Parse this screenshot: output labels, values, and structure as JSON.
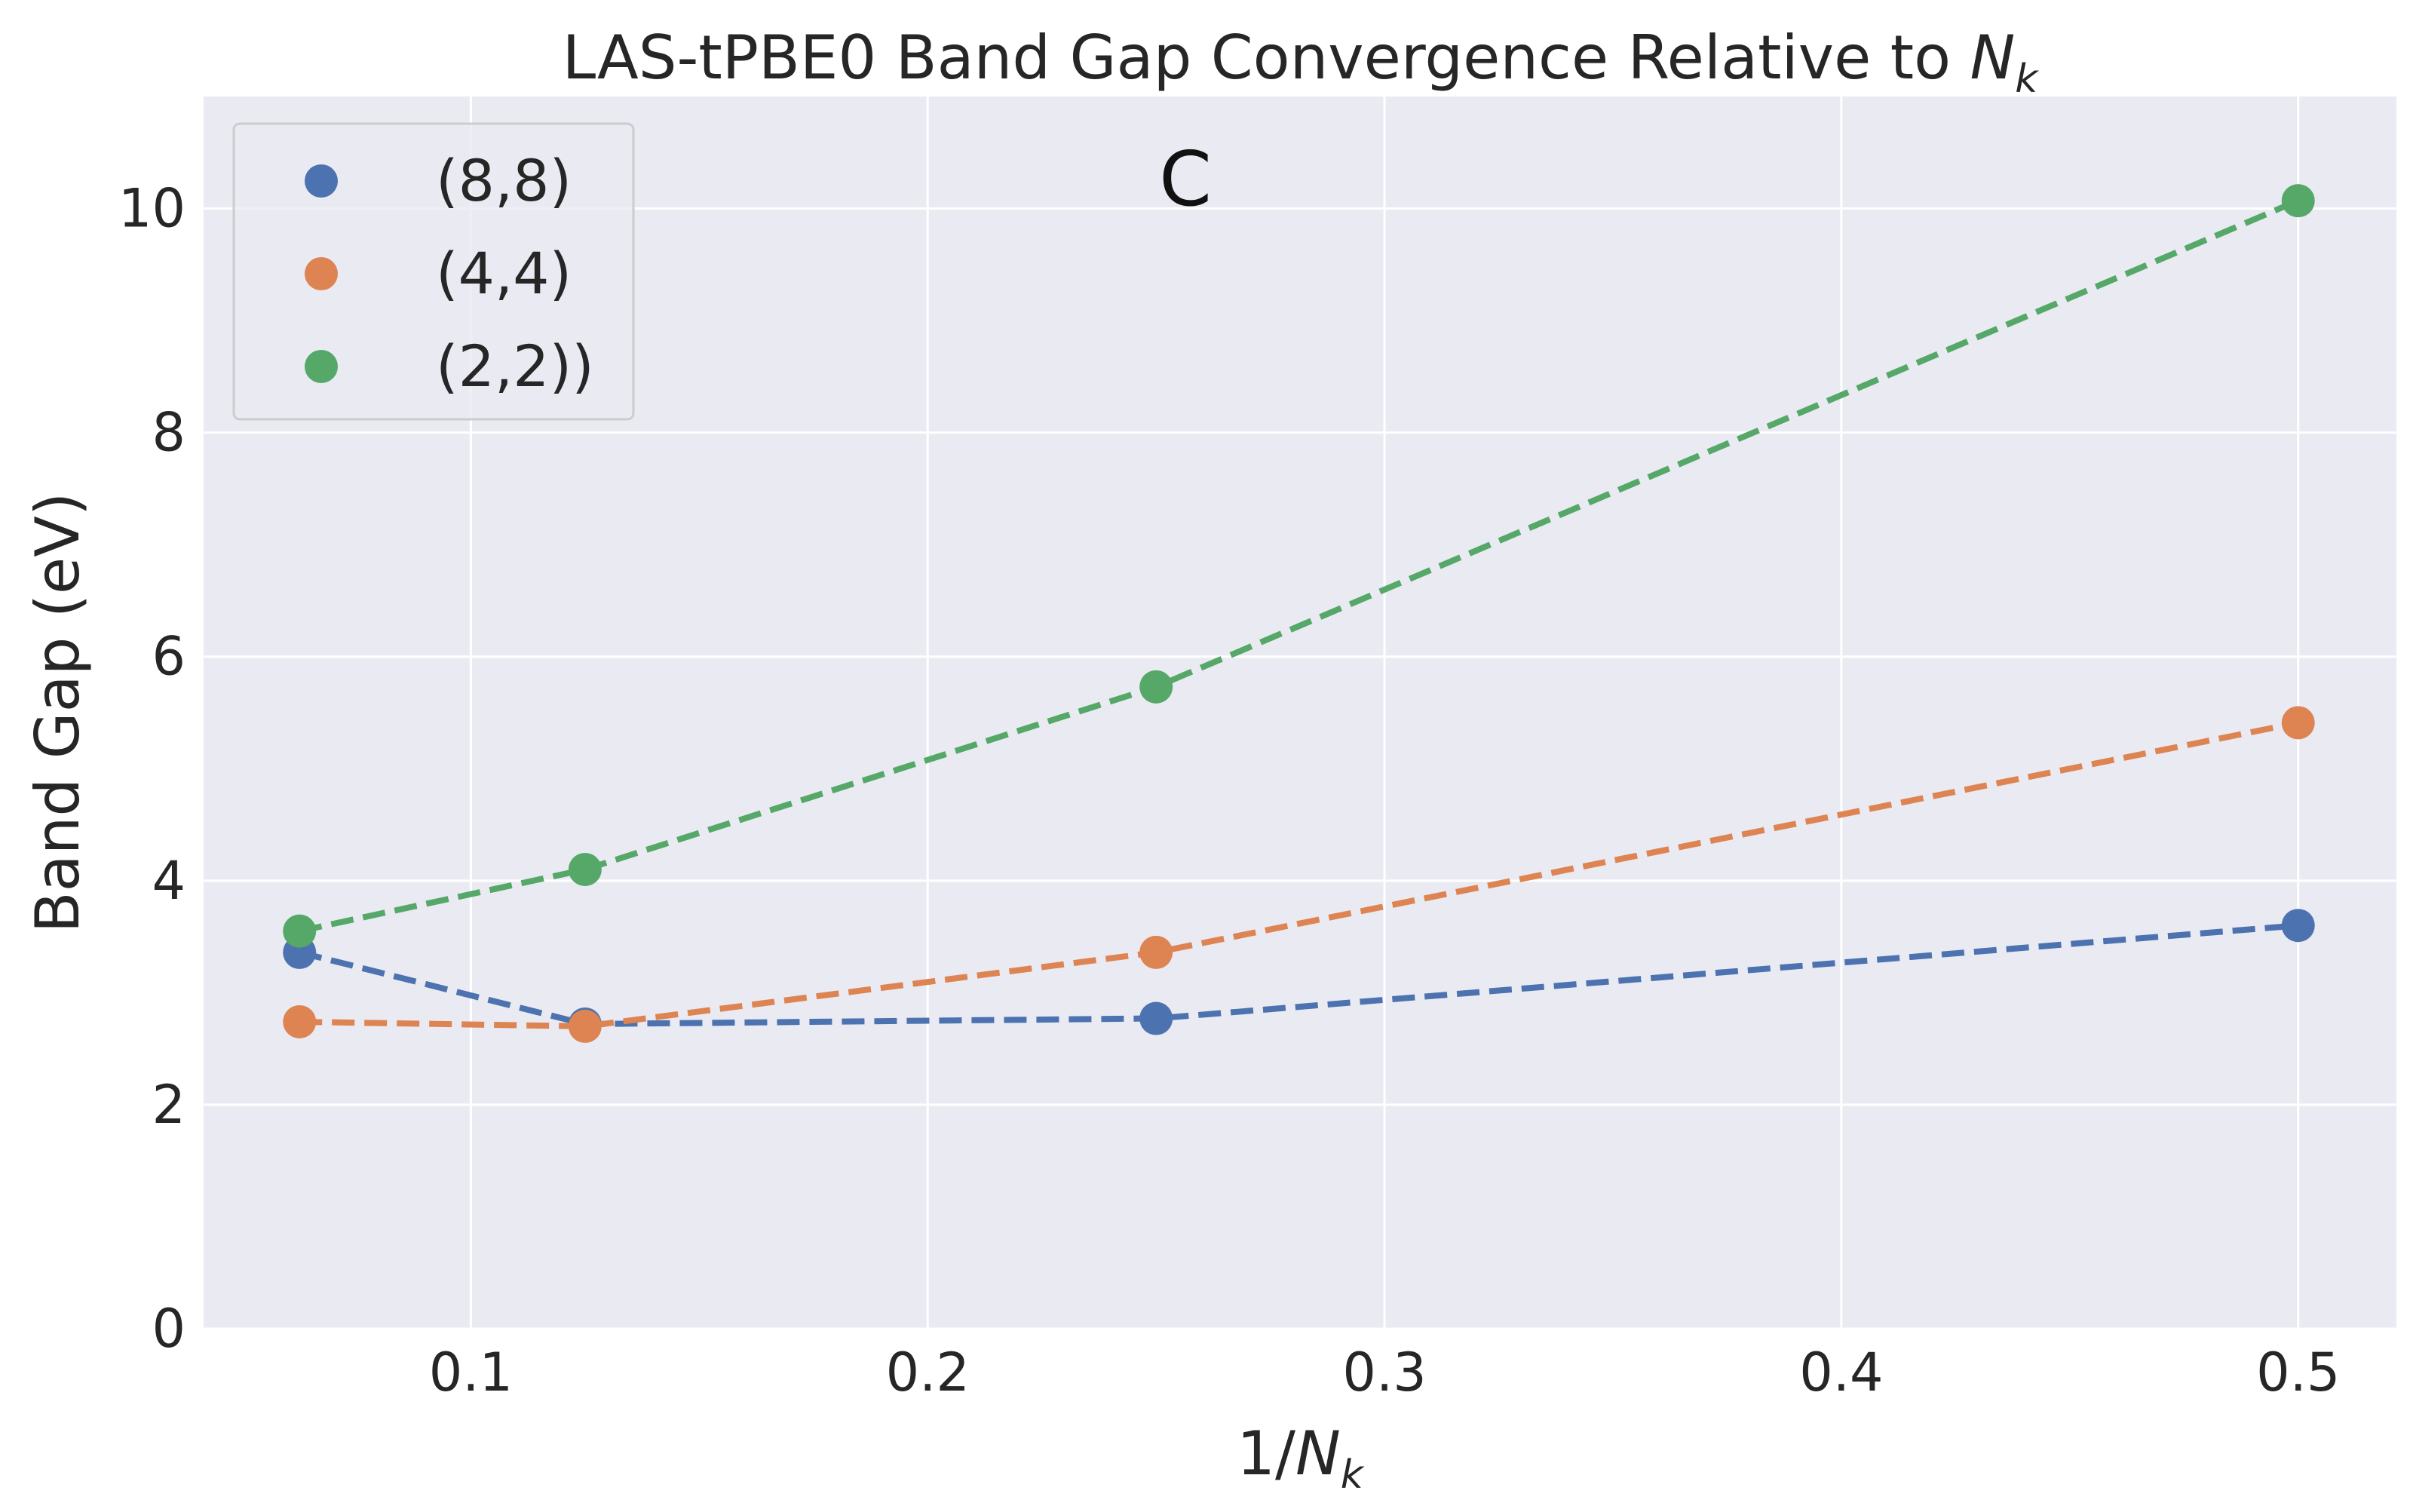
{
  "chart_data": {
    "type": "line",
    "title_prefix": "LAS-tPBE0 Band Gap Convergence Relative to ",
    "title_math_main": "N",
    "title_math_sub": "k",
    "xlabel_prefix": "1/",
    "xlabel_math_main": "N",
    "xlabel_math_sub": "k",
    "ylabel": "Band Gap (eV)",
    "panel_label": "C",
    "xlim": [
      0.0415,
      0.5215
    ],
    "ylim": [
      0,
      11
    ],
    "xticks": [
      0.1,
      0.2,
      0.3,
      0.4,
      0.5
    ],
    "xtick_labels": [
      "0.1",
      "0.2",
      "0.3",
      "0.4",
      "0.5"
    ],
    "yticks": [
      0,
      2,
      4,
      6,
      8,
      10
    ],
    "ytick_labels": [
      "0",
      "2",
      "4",
      "6",
      "8",
      "10"
    ],
    "grid": true,
    "legend_position": "top-left",
    "line_style": "dashed",
    "marker": "circle",
    "plot_background": "#EAEAF2",
    "grid_color": "#FFFFFF",
    "x": [
      0.0625,
      0.125,
      0.25,
      0.5
    ],
    "series": [
      {
        "name": "(8,8)",
        "color": "#4C72B0",
        "values": [
          3.36,
          2.72,
          2.77,
          3.6
        ]
      },
      {
        "name": "(4,4)",
        "color": "#DD8452",
        "values": [
          2.74,
          2.7,
          3.36,
          5.41
        ]
      },
      {
        "name": "(2,2))",
        "color": "#55A868",
        "values": [
          3.55,
          4.1,
          5.73,
          10.07
        ]
      }
    ]
  }
}
